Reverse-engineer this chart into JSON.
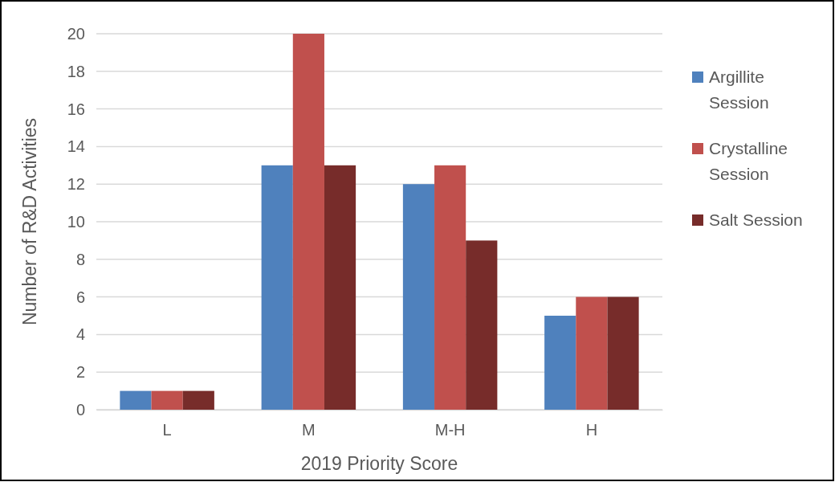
{
  "chart_data": {
    "type": "bar",
    "xlabel": "2019 Priority Score",
    "ylabel": "Number of R&D Activities",
    "categories": [
      "L",
      "M",
      "M-H",
      "H"
    ],
    "series": [
      {
        "name": "Argillite Session",
        "color": "#4f81bd",
        "values": [
          1,
          13,
          12,
          5
        ]
      },
      {
        "name": "Crystalline Session",
        "color": "#c0504d",
        "values": [
          1,
          20,
          13,
          6
        ]
      },
      {
        "name": "Salt Session",
        "color": "#772c2a",
        "values": [
          1,
          13,
          9,
          6
        ]
      }
    ],
    "ylim": [
      0,
      20
    ],
    "yticks": [
      0,
      2,
      4,
      6,
      8,
      10,
      12,
      14,
      16,
      18,
      20
    ],
    "grid": "y",
    "legend": "right"
  }
}
